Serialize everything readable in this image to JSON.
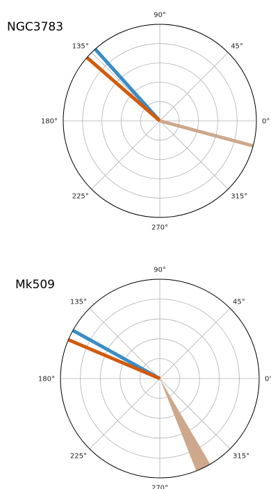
{
  "chart_data": [
    {
      "type": "polar",
      "title": "NGC3783",
      "angle_tick_labels": [
        "0°",
        "45°",
        "90°",
        "135°",
        "180°",
        "225°",
        "270°",
        "315°"
      ],
      "radial_rings": 5,
      "series": [
        {
          "color": "#3A8DC4",
          "angle_deg": 132,
          "width_deg": 0
        },
        {
          "color": "#D35A0C",
          "angle_deg": 139,
          "width_deg": 0
        },
        {
          "color": "#CDA88C",
          "angle_deg": -15,
          "width_deg": 0
        }
      ]
    },
    {
      "type": "polar",
      "title": "Mk509",
      "angle_tick_labels": [
        "0°",
        "45°",
        "90°",
        "135°",
        "180°",
        "225°",
        "270°",
        "315°"
      ],
      "radial_rings": 5,
      "series": [
        {
          "color": "#3A8DC4",
          "angle_deg": 151,
          "width_deg": 0
        },
        {
          "color": "#D35A0C",
          "angle_deg": 157,
          "width_deg": 0
        },
        {
          "color": "#CDA88C",
          "angle_deg": 296,
          "width_deg": 9
        }
      ]
    }
  ]
}
